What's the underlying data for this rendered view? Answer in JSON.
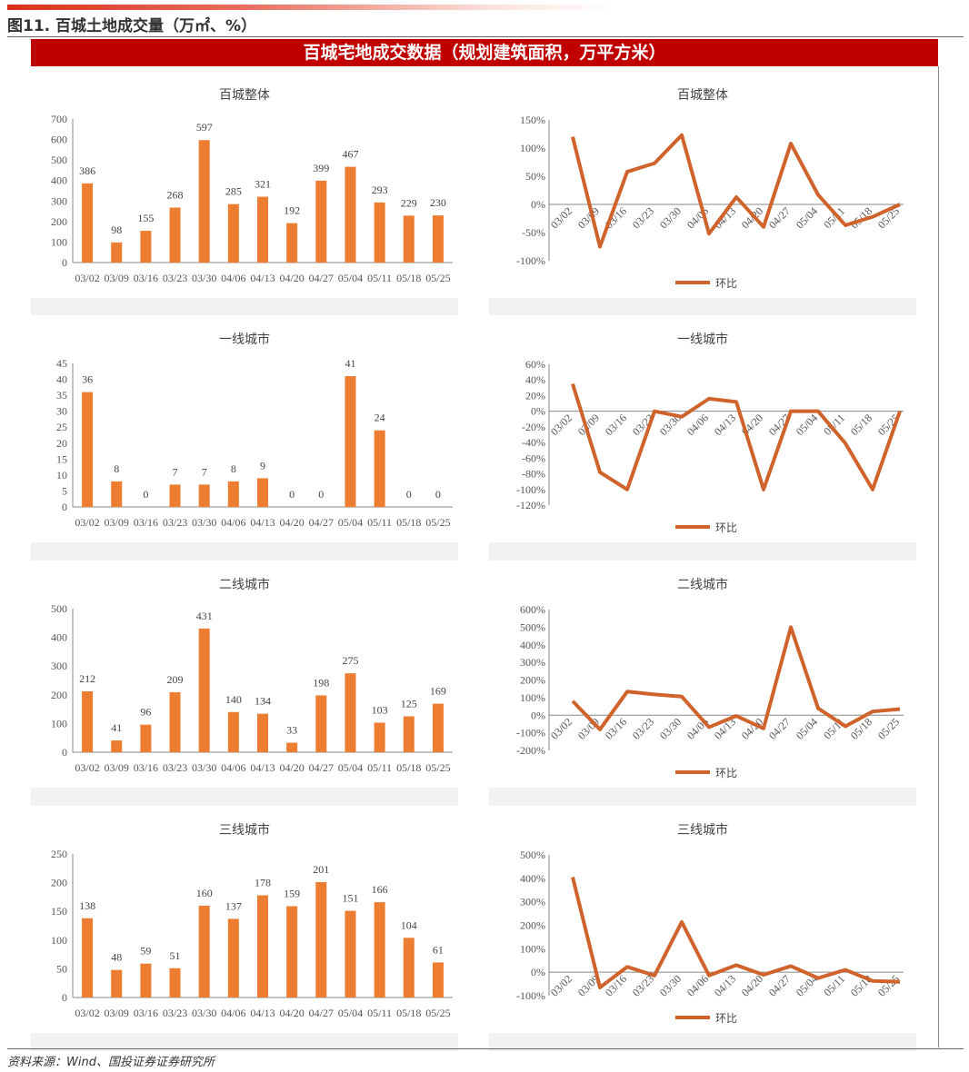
{
  "figure_title": "图11. 百城土地成交量（万㎡、%）",
  "banner": "百城宅地成交数据（规划建筑面积，万平方米）",
  "source": "资料来源：Wind、国投证券证券研究所",
  "colors": {
    "bar": "#ED7D31",
    "line": "#D0622B",
    "banner": "#C00000"
  },
  "chart_data": [
    {
      "type": "bar",
      "title": "百城整体",
      "categories": [
        "03/02",
        "03/09",
        "03/16",
        "03/23",
        "03/30",
        "04/06",
        "04/13",
        "04/20",
        "04/27",
        "05/04",
        "05/11",
        "05/18",
        "05/25"
      ],
      "values": [
        386,
        98,
        155,
        268,
        597,
        285,
        321,
        192,
        399,
        467,
        293,
        229,
        230
      ],
      "ylim": [
        0,
        700
      ],
      "ystep": 100,
      "xlabel": "",
      "ylabel": ""
    },
    {
      "type": "line",
      "title": "百城整体",
      "legend": "环比",
      "categories": [
        "03/02",
        "03/09",
        "03/16",
        "03/23",
        "03/30",
        "04/06",
        "04/13",
        "04/20",
        "04/27",
        "05/04",
        "05/11",
        "05/18",
        "05/25"
      ],
      "values": [
        120,
        -75,
        58,
        73,
        123,
        -52,
        13,
        -40,
        108,
        17,
        -37,
        -22,
        0
      ],
      "ylim": [
        -100,
        150
      ],
      "ystep": 50,
      "unit": "%"
    },
    {
      "type": "bar",
      "title": "一线城市",
      "categories": [
        "03/02",
        "03/09",
        "03/16",
        "03/23",
        "03/30",
        "04/06",
        "04/13",
        "04/20",
        "04/27",
        "05/04",
        "05/11",
        "05/18",
        "05/25"
      ],
      "values": [
        36,
        8,
        0,
        7,
        7,
        8,
        9,
        0,
        0,
        41,
        24,
        0,
        0
      ],
      "ylim": [
        0,
        45
      ],
      "ystep": 5
    },
    {
      "type": "line",
      "title": "一线城市",
      "legend": "环比",
      "categories": [
        "03/02",
        "03/09",
        "03/16",
        "03/23",
        "03/30",
        "04/06",
        "04/13",
        "04/20",
        "04/27",
        "05/04",
        "05/11",
        "05/18",
        "05/25"
      ],
      "values": [
        35,
        -78,
        -100,
        0,
        -7,
        16,
        12,
        -100,
        0,
        0,
        -41,
        -100,
        0
      ],
      "ylim": [
        -120,
        60
      ],
      "ystep": 20,
      "unit": "%"
    },
    {
      "type": "bar",
      "title": "二线城市",
      "categories": [
        "03/02",
        "03/09",
        "03/16",
        "03/23",
        "03/30",
        "04/06",
        "04/13",
        "04/20",
        "04/27",
        "05/04",
        "05/11",
        "05/18",
        "05/25"
      ],
      "values": [
        212,
        41,
        96,
        209,
        431,
        140,
        134,
        33,
        198,
        275,
        103,
        125,
        169
      ],
      "ylim": [
        0,
        500
      ],
      "ystep": 100
    },
    {
      "type": "line",
      "title": "二线城市",
      "legend": "环比",
      "categories": [
        "03/02",
        "03/09",
        "03/16",
        "03/23",
        "03/30",
        "04/06",
        "04/13",
        "04/20",
        "04/27",
        "05/04",
        "05/11",
        "05/18",
        "05/25"
      ],
      "values": [
        80,
        -81,
        134,
        118,
        106,
        -68,
        -4,
        -75,
        500,
        39,
        -63,
        21,
        35
      ],
      "ylim": [
        -200,
        600
      ],
      "ystep": 100,
      "unit": "%"
    },
    {
      "type": "bar",
      "title": "三线城市",
      "categories": [
        "03/02",
        "03/09",
        "03/16",
        "03/23",
        "03/30",
        "04/06",
        "04/13",
        "04/20",
        "04/27",
        "05/04",
        "05/11",
        "05/18",
        "05/25"
      ],
      "values": [
        138,
        48,
        59,
        51,
        160,
        137,
        178,
        159,
        201,
        151,
        166,
        104,
        61
      ],
      "ylim": [
        0,
        250
      ],
      "ystep": 50
    },
    {
      "type": "line",
      "title": "三线城市",
      "legend": "环比",
      "categories": [
        "03/02",
        "03/09",
        "03/16",
        "03/23",
        "03/30",
        "04/06",
        "04/13",
        "04/20",
        "04/27",
        "05/04",
        "05/11",
        "05/18",
        "05/25"
      ],
      "values": [
        405,
        -65,
        23,
        -14,
        214,
        -14,
        30,
        -11,
        26,
        -25,
        10,
        -37,
        -41
      ],
      "ylim": [
        -100,
        500
      ],
      "ystep": 100,
      "unit": "%"
    }
  ]
}
